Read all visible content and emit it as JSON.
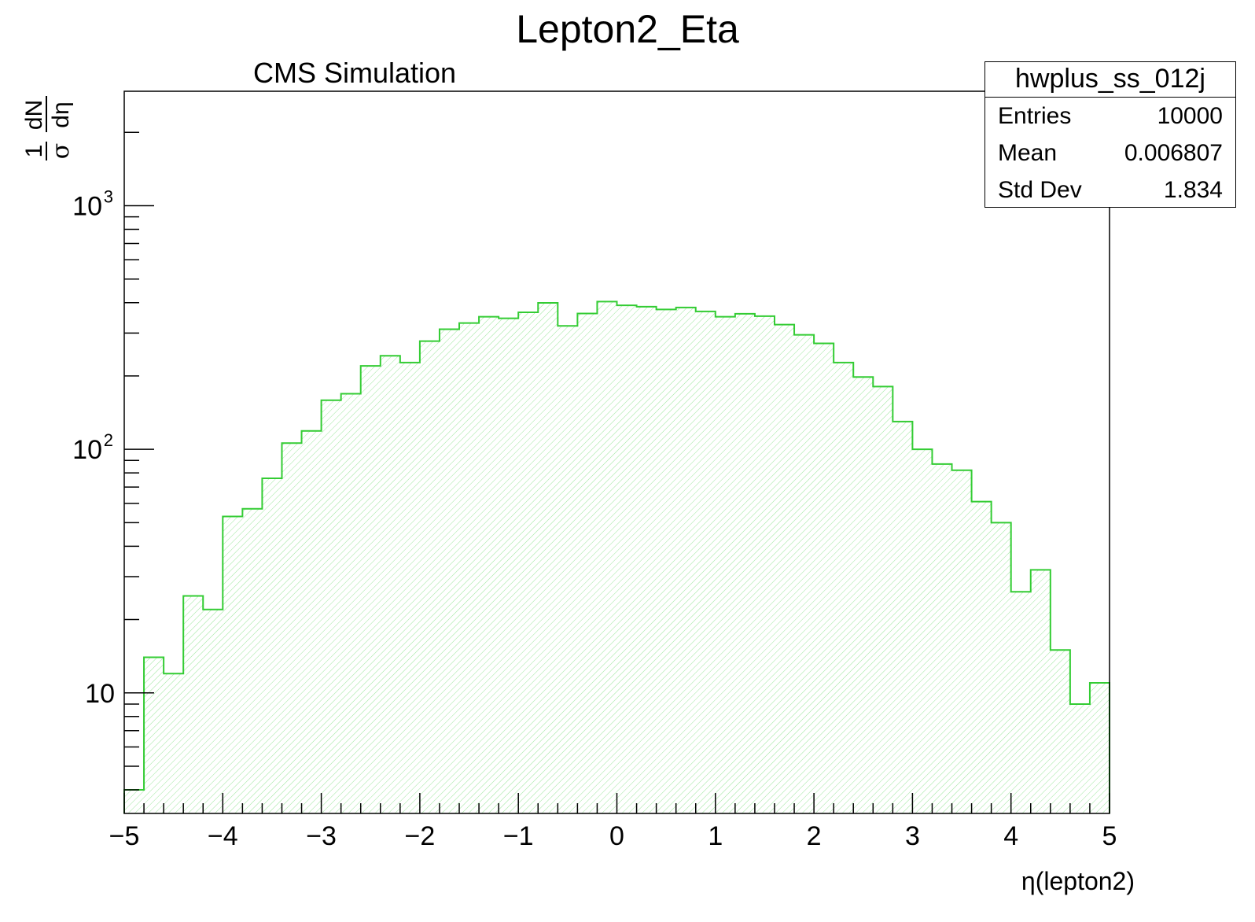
{
  "chart_data": {
    "type": "bar",
    "title": "Lepton2_Eta",
    "subtitle": "CMS Simulation",
    "xlabel": "η(lepton2)",
    "ylabel_num": "1",
    "ylabel_den": "σ",
    "ylabel_dnum": "dN",
    "ylabel_dden": "dη",
    "xlim": [
      -5,
      5
    ],
    "ylim": [
      3.2,
      2950
    ],
    "ylog": true,
    "x_ticks": [
      "−5",
      "−4",
      "−3",
      "−2",
      "−1",
      "0",
      "1",
      "2",
      "3",
      "4",
      "5"
    ],
    "y_ticks": [
      {
        "value": 10,
        "base": "10",
        "exp": ""
      },
      {
        "value": 100,
        "base": "10",
        "exp": "2"
      },
      {
        "value": 1000,
        "base": "10",
        "exp": "3"
      }
    ],
    "bin_width": 0.2,
    "bin_edges_start": -5,
    "values": [
      4,
      14,
      12,
      25,
      22,
      53,
      57,
      76,
      106,
      119,
      159,
      169,
      220,
      242,
      227,
      278,
      311,
      330,
      350,
      345,
      365,
      399,
      321,
      361,
      404,
      390,
      385,
      375,
      382,
      368,
      350,
      360,
      352,
      325,
      295,
      272,
      227,
      198,
      181,
      130,
      100,
      87,
      82,
      61,
      50,
      26,
      32,
      15,
      9,
      11
    ],
    "line_color": "#33cc33",
    "fill_hatch_color": "#9be69b",
    "stats": {
      "name": "hwplus_ss_012j",
      "rows": [
        {
          "key": "Entries",
          "value": "10000"
        },
        {
          "key": "Mean",
          "value": "0.006807"
        },
        {
          "key": "Std Dev",
          "value": "1.834"
        }
      ]
    }
  }
}
